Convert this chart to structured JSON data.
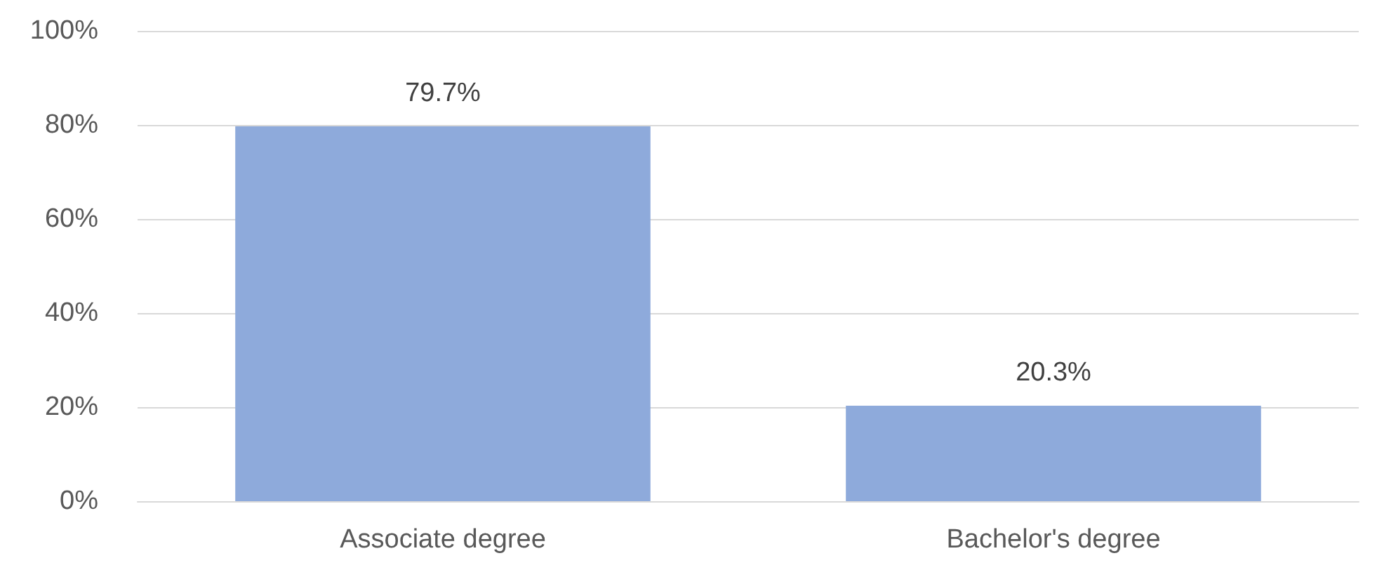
{
  "chart_data": {
    "type": "bar",
    "categories": [
      "Associate degree",
      "Bachelor's degree"
    ],
    "values": [
      79.7,
      20.3
    ],
    "value_labels": [
      "79.7%",
      "20.3%"
    ],
    "color": "#8eaadb",
    "ylim": [
      0,
      100
    ],
    "yticks": [
      {
        "value": 0,
        "label": "0%"
      },
      {
        "value": 20,
        "label": "20%"
      },
      {
        "value": 40,
        "label": "40%"
      },
      {
        "value": 60,
        "label": "60%"
      },
      {
        "value": 80,
        "label": "80%"
      },
      {
        "value": 100,
        "label": "100%"
      }
    ],
    "grid": "y"
  }
}
